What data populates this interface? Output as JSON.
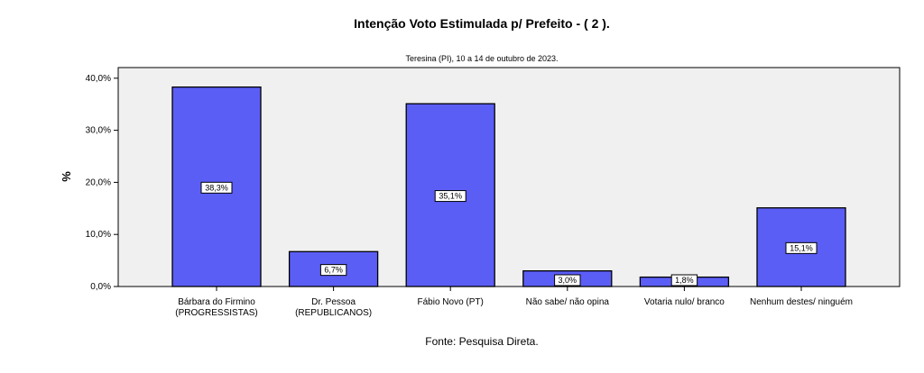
{
  "chart_data": {
    "type": "bar",
    "title": "Intenção Voto Estimulada p/ Prefeito  -  ( 2 ).",
    "subtitle": "Teresina (PI), 10 a 14 de outubro de 2023.",
    "xlabel": "",
    "ylabel": "%",
    "ylim": [
      0,
      42
    ],
    "yticks": [
      "0,0%",
      "10,0%",
      "20,0%",
      "30,0%",
      "40,0%"
    ],
    "ytick_values": [
      0,
      10,
      20,
      30,
      40
    ],
    "categories": [
      [
        "Bárbara do Firmino",
        "(PROGRESSISTAS)"
      ],
      [
        "Dr. Pessoa",
        "(REPUBLICANOS)"
      ],
      [
        "Fábio Novo (PT)"
      ],
      [
        "Não sabe/ não opina"
      ],
      [
        "Votaria nulo/ branco"
      ],
      [
        "Nenhum destes/ ninguém"
      ]
    ],
    "values": [
      38.3,
      6.7,
      35.1,
      3.0,
      1.8,
      15.1
    ],
    "data_labels": [
      "38,3%",
      "6,7%",
      "35,1%",
      "3,0%",
      "1,8%",
      "15,1%"
    ],
    "bar_color": "#5b5ef5",
    "plot_background": "#f0f0f0",
    "grid": false,
    "source": "Fonte: Pesquisa Direta."
  }
}
